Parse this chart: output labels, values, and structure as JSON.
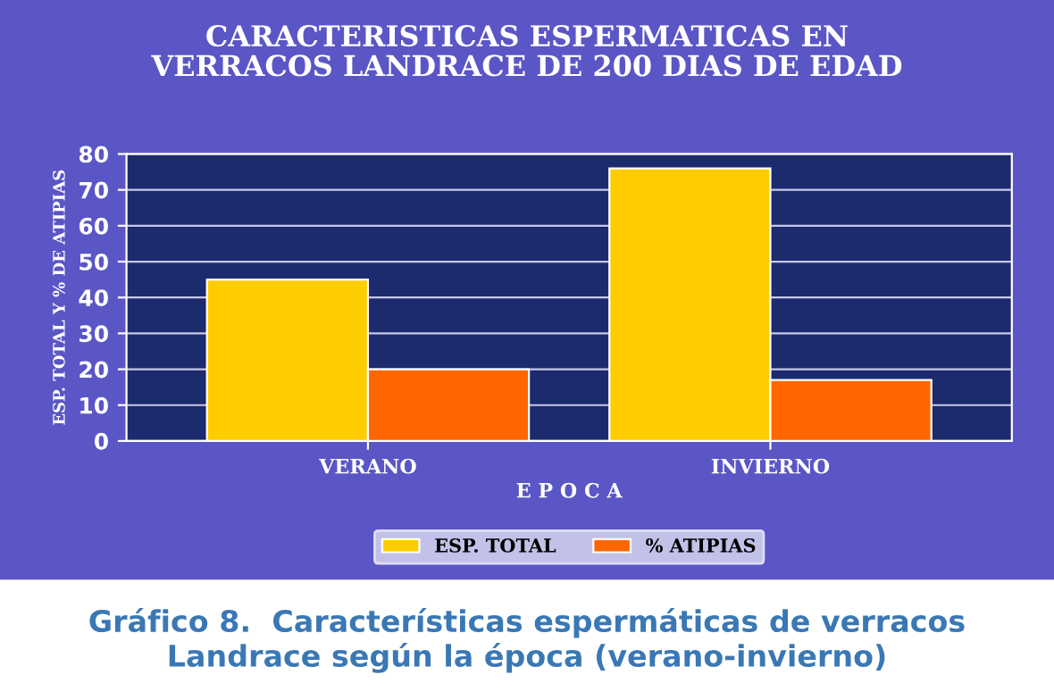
{
  "chart_data": {
    "type": "bar",
    "title": "CARACTERISTICAS ESPERMATICAS EN\nVERRACOS LANDRACE DE 200 DIAS DE EDAD",
    "xlabel": "E P O C A",
    "ylabel": "ESP. TOTAL Y % DE ATIPIAS",
    "categories": [
      "VERANO",
      "INVIERNO"
    ],
    "series": [
      {
        "name": "ESP. TOTAL",
        "color": "#ffcc00",
        "values": [
          45,
          76
        ]
      },
      {
        "name": "% ATIPIAS",
        "color": "#ff6600",
        "values": [
          20,
          17
        ]
      }
    ],
    "ylim": [
      0,
      80
    ],
    "yticks": [
      0,
      10,
      20,
      30,
      40,
      50,
      60,
      70,
      80
    ],
    "grid": "y",
    "legend": "bottom",
    "annotations": [
      "Gráfico 8.  Características espermáticas de verracos\nLandrace según la época (verano-invierno)"
    ]
  }
}
